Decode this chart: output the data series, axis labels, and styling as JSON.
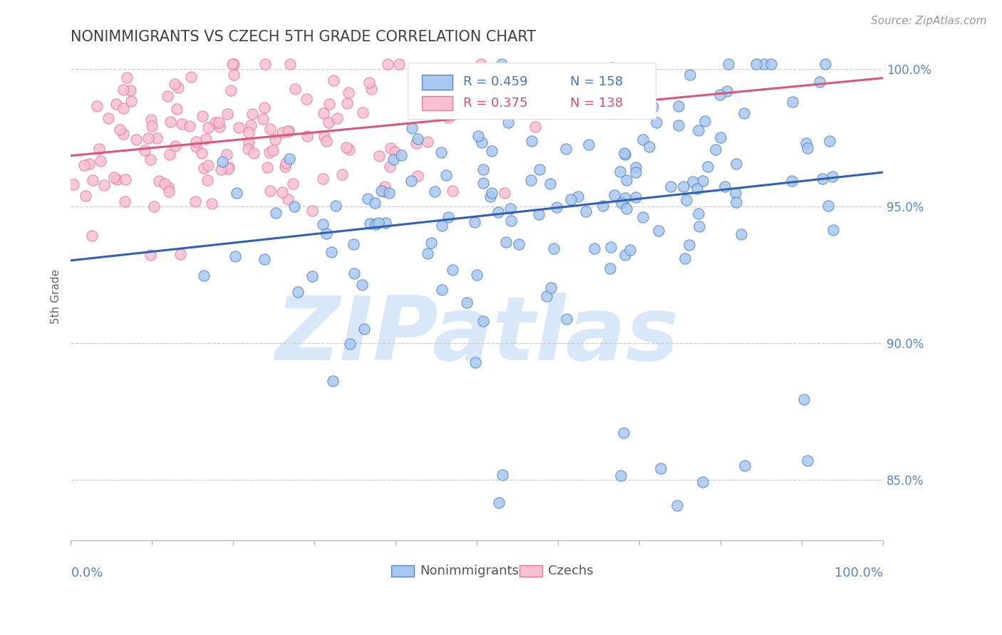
{
  "title": "NONIMMIGRANTS VS CZECH 5TH GRADE CORRELATION CHART",
  "source": "Source: ZipAtlas.com",
  "ylabel": "5th Grade",
  "legend_blue_r": "R = 0.459",
  "legend_blue_n": "N = 158",
  "legend_pink_r": "R = 0.375",
  "legend_pink_n": "N = 138",
  "blue_fill": "#a8c8f0",
  "blue_edge": "#5585c8",
  "pink_fill": "#f8c0d0",
  "pink_edge": "#e87898",
  "blue_line_color": "#3060b8",
  "pink_line_color": "#d85878",
  "legend_blue_color": "#4472c4",
  "legend_pink_color": "#d05070",
  "title_color": "#404040",
  "axis_label_color": "#5585c8",
  "watermark_color": "#d8e8f8",
  "background_color": "#ffffff",
  "xlim": [
    0.0,
    1.0
  ],
  "ylim": [
    0.828,
    1.006
  ],
  "yticks": [
    0.85,
    0.9,
    0.95,
    1.0
  ],
  "ytick_labels": [
    "85.0%",
    "90.0%",
    "95.0%",
    "100.0%"
  ],
  "seed": 42,
  "n_blue": 158,
  "n_pink": 138,
  "dot_size": 120
}
